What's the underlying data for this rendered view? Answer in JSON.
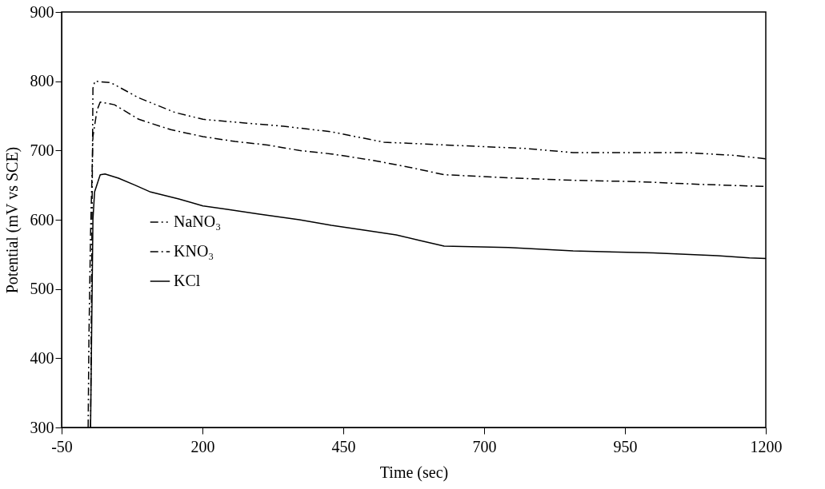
{
  "chart_data": {
    "type": "line",
    "xlabel": "Time (sec)",
    "ylabel": "Potential (mV vs SCE)",
    "xlim": [
      -50,
      1200
    ],
    "xticks": [
      -50,
      200,
      450,
      700,
      950,
      1200
    ],
    "ylim": [
      300,
      900
    ],
    "yticks": [
      300,
      400,
      500,
      600,
      700,
      800,
      900
    ],
    "grid": false,
    "legend": "bottom left",
    "marker": "none",
    "series": [
      {
        "name": "NaNO₃",
        "color": "#000000",
        "line_style": "dashdotdot",
        "x": [
          1.4,
          5.6,
          9,
          37,
          51,
          87,
          151,
          201,
          272,
          344,
          429,
          472,
          522,
          629,
          772,
          858,
          1057,
          1143,
          1200
        ],
        "values": [
          300,
          790,
          800,
          798,
          792,
          776,
          755,
          745,
          740,
          735,
          727,
          720,
          712,
          708,
          703,
          697,
          697,
          693,
          688
        ]
      },
      {
        "name": "KNO₃",
        "color": "#000000",
        "line_style": "dashdot",
        "x": [
          -2.9,
          -1.5,
          1.4,
          5.6,
          12.8,
          18.5,
          44,
          87,
          144,
          201,
          258,
          315,
          372,
          429,
          501,
          572,
          629,
          758,
          858,
          972,
          1086,
          1200
        ],
        "values": [
          300,
          430,
          580,
          720,
          758,
          770,
          766,
          745,
          730,
          720,
          713,
          708,
          700,
          695,
          686,
          675,
          665,
          660,
          657,
          655,
          651,
          648
        ]
      },
      {
        "name": "KCl",
        "color": "#000000",
        "line_style": "solid",
        "x": [
          1.4,
          2.8,
          5.6,
          8.5,
          18.5,
          27,
          51,
          80,
          108,
          158,
          201,
          244,
          301,
          372,
          429,
          487,
          544,
          586,
          629,
          743,
          858,
          1000,
          1114,
          1171,
          1200
        ],
        "values": [
          300,
          400,
          600,
          640,
          665,
          666,
          660,
          650,
          640,
          630,
          620,
          615,
          608,
          600,
          592,
          585,
          578,
          570,
          562,
          560,
          555,
          552,
          548,
          545,
          544
        ]
      }
    ]
  }
}
